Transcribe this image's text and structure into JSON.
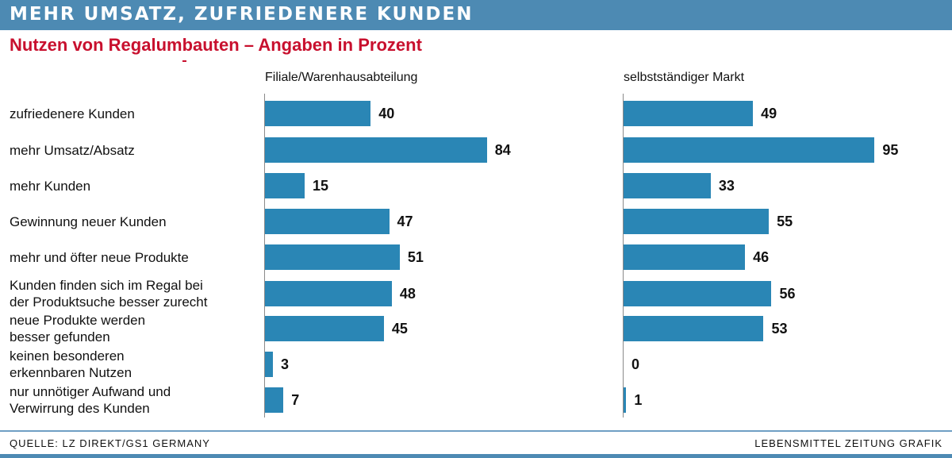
{
  "header": {
    "title": "MEHR UMSATZ, ZUFRIEDENERE KUNDEN",
    "subtitle": "Nutzen von Regalumbauten – Angaben in Prozent"
  },
  "colors": {
    "bar": "#2a86b5",
    "header": "#4d8ab3",
    "subtitle": "#c8102e"
  },
  "chart_data": {
    "type": "bar",
    "orientation": "horizontal",
    "title": "Nutzen von Regalumbauten – Angaben in Prozent",
    "unit": "Prozent",
    "categories": [
      "zufriedenere Kunden",
      "mehr Umsatz/Absatz",
      "mehr Kunden",
      "Gewinnung neuer Kunden",
      "mehr und öfter neue Produkte",
      "Kunden finden sich im Regal bei der Produktsuche besser zurecht",
      "neue Produkte werden besser gefunden",
      "keinen besonderen erkennbaren Nutzen",
      "nur unnötiger Aufwand und Verwirrung des Kunden"
    ],
    "category_lines": [
      [
        "zufriedenere Kunden"
      ],
      [
        "mehr Umsatz/Absatz"
      ],
      [
        "mehr Kunden"
      ],
      [
        "Gewinnung neuer Kunden"
      ],
      [
        "mehr und öfter neue Produkte"
      ],
      [
        "Kunden finden sich im Regal bei",
        "der Produktsuche besser zurecht"
      ],
      [
        "neue Produkte werden",
        "besser gefunden"
      ],
      [
        "keinen besonderen",
        "erkennbaren Nutzen"
      ],
      [
        "nur unnötiger Aufwand und",
        "Verwirrung des Kunden"
      ]
    ],
    "series": [
      {
        "name": "Filiale/Warenhausabteilung",
        "values": [
          40,
          84,
          15,
          47,
          51,
          48,
          45,
          3,
          7
        ]
      },
      {
        "name": "selbstständiger Markt",
        "values": [
          49,
          95,
          33,
          55,
          46,
          56,
          53,
          0,
          1
        ]
      }
    ],
    "xlim": [
      0,
      100
    ],
    "grid": false,
    "legend": "none"
  },
  "footer": {
    "source": "QUELLE: LZ DIREKT/GS1 GERMANY",
    "credit": "LEBENSMITTEL ZEITUNG GRAFIK"
  }
}
